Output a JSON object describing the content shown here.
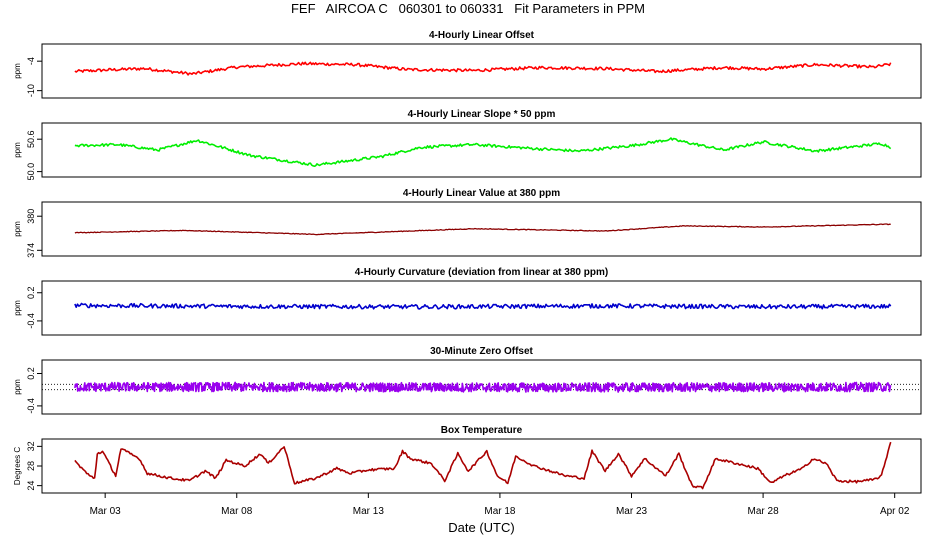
{
  "title": "FEF   AIRCOA C   060301 to 060331   Fit Parameters in PPM",
  "x_axis": {
    "label": "Date (UTC)",
    "ticks": [
      {
        "label": "Mar 03",
        "day": 3
      },
      {
        "label": "Mar 08",
        "day": 8
      },
      {
        "label": "Mar 13",
        "day": 13
      },
      {
        "label": "Mar 18",
        "day": 18
      },
      {
        "label": "Mar 23",
        "day": 23
      },
      {
        "label": "Mar 28",
        "day": 28
      },
      {
        "label": "Apr 02",
        "day": 33
      }
    ],
    "range_days": [
      0.6,
      34.0
    ]
  },
  "chart_data": [
    {
      "type": "line",
      "title": "4-Hourly Linear Offset",
      "ylabel": "ppm",
      "yticks": [
        "-4",
        "-10"
      ],
      "ytick_values": [
        -4,
        -10
      ],
      "ylim": [
        -11.5,
        -0.5
      ],
      "color": "#ff0000",
      "x_start": 1.85,
      "x_end": 32.85,
      "anchors": [
        {
          "x": 1.85,
          "y": -6.1
        },
        {
          "x": 3.0,
          "y": -5.8
        },
        {
          "x": 4.5,
          "y": -5.5
        },
        {
          "x": 6.3,
          "y": -6.6
        },
        {
          "x": 8.0,
          "y": -5.2
        },
        {
          "x": 10.5,
          "y": -4.5
        },
        {
          "x": 12.5,
          "y": -4.7
        },
        {
          "x": 14.5,
          "y": -5.7
        },
        {
          "x": 17.0,
          "y": -5.9
        },
        {
          "x": 19.5,
          "y": -5.3
        },
        {
          "x": 22.0,
          "y": -5.5
        },
        {
          "x": 24.0,
          "y": -6.1
        },
        {
          "x": 26.5,
          "y": -5.3
        },
        {
          "x": 28.0,
          "y": -5.6
        },
        {
          "x": 30.0,
          "y": -4.7
        },
        {
          "x": 32.2,
          "y": -5.2
        },
        {
          "x": 32.85,
          "y": -4.6
        }
      ],
      "noise": 0.3
    },
    {
      "type": "line",
      "title": "4-Hourly Linear Slope * 50 ppm",
      "ylabel": "ppm",
      "yticks": [
        "50.6",
        "50.0"
      ],
      "ytick_values": [
        50.6,
        50.0
      ],
      "ylim": [
        49.9,
        50.9
      ],
      "color": "#00ee00",
      "x_start": 1.85,
      "x_end": 32.85,
      "anchors": [
        {
          "x": 1.85,
          "y": 50.48
        },
        {
          "x": 3.5,
          "y": 50.5
        },
        {
          "x": 5.0,
          "y": 50.4
        },
        {
          "x": 6.5,
          "y": 50.58
        },
        {
          "x": 8.5,
          "y": 50.3
        },
        {
          "x": 11.0,
          "y": 50.12
        },
        {
          "x": 13.5,
          "y": 50.28
        },
        {
          "x": 15.0,
          "y": 50.45
        },
        {
          "x": 17.0,
          "y": 50.5
        },
        {
          "x": 19.5,
          "y": 50.42
        },
        {
          "x": 21.0,
          "y": 50.38
        },
        {
          "x": 23.0,
          "y": 50.48
        },
        {
          "x": 24.5,
          "y": 50.6
        },
        {
          "x": 26.5,
          "y": 50.4
        },
        {
          "x": 28.0,
          "y": 50.55
        },
        {
          "x": 30.0,
          "y": 50.38
        },
        {
          "x": 32.5,
          "y": 50.52
        },
        {
          "x": 32.85,
          "y": 50.45
        }
      ],
      "noise": 0.025
    },
    {
      "type": "line",
      "title": "4-Hourly Linear Value at 380 ppm",
      "ylabel": "ppm",
      "yticks": [
        "380",
        "374"
      ],
      "ytick_values": [
        380,
        374
      ],
      "ylim": [
        373.0,
        382.5
      ],
      "color": "#8b0000",
      "x_start": 1.85,
      "x_end": 32.85,
      "anchors": [
        {
          "x": 1.85,
          "y": 377.1
        },
        {
          "x": 6.0,
          "y": 377.5
        },
        {
          "x": 11.0,
          "y": 376.8
        },
        {
          "x": 17.0,
          "y": 377.8
        },
        {
          "x": 22.0,
          "y": 377.4
        },
        {
          "x": 25.0,
          "y": 378.3
        },
        {
          "x": 28.0,
          "y": 378.1
        },
        {
          "x": 32.85,
          "y": 378.6
        }
      ],
      "noise": 0.06
    },
    {
      "type": "line",
      "title": "4-Hourly Curvature (deviation from linear at 380 ppm)",
      "ylabel": "ppm",
      "yticks": [
        "0.2",
        "-0.4"
      ],
      "ytick_values": [
        0.2,
        -0.4
      ],
      "ylim": [
        -0.7,
        0.45
      ],
      "color": "#0000cc",
      "x_start": 1.85,
      "x_end": 32.85,
      "anchors": [
        {
          "x": 1.85,
          "y": -0.07
        },
        {
          "x": 8.0,
          "y": -0.09
        },
        {
          "x": 15.0,
          "y": -0.1
        },
        {
          "x": 22.0,
          "y": -0.08
        },
        {
          "x": 28.0,
          "y": -0.1
        },
        {
          "x": 32.85,
          "y": -0.09
        }
      ],
      "noise": 0.045
    },
    {
      "type": "line",
      "title": "30-Minute Zero Offset",
      "ylabel": "ppm",
      "yticks": [
        "0.2",
        "-0.4"
      ],
      "ytick_values": [
        0.2,
        -0.4
      ],
      "ylim": [
        -0.55,
        0.45
      ],
      "color": "#9900ee",
      "reference_lines": [
        0.0,
        -0.1
      ],
      "x_start": 1.85,
      "x_end": 32.85,
      "anchors": [
        {
          "x": 1.85,
          "y": -0.05
        },
        {
          "x": 10.0,
          "y": -0.05
        },
        {
          "x": 20.0,
          "y": -0.06
        },
        {
          "x": 32.85,
          "y": -0.05
        }
      ],
      "noise": 0.085
    },
    {
      "type": "line",
      "title": "Box Temperature",
      "ylabel": "Degrees C",
      "yticks": [
        "32",
        "28",
        "24"
      ],
      "ytick_values": [
        32,
        28,
        24
      ],
      "ylim": [
        22.5,
        33.5
      ],
      "color": "#aa0000",
      "x_start": 1.85,
      "x_end": 32.85,
      "anchors": [
        {
          "x": 1.85,
          "y": 29.0
        },
        {
          "x": 2.4,
          "y": 26.0
        },
        {
          "x": 2.6,
          "y": 25.5
        },
        {
          "x": 2.7,
          "y": 30.5
        },
        {
          "x": 2.9,
          "y": 31.0
        },
        {
          "x": 3.4,
          "y": 26.0
        },
        {
          "x": 3.6,
          "y": 31.5
        },
        {
          "x": 4.3,
          "y": 29.5
        },
        {
          "x": 4.6,
          "y": 26.5
        },
        {
          "x": 5.5,
          "y": 25.5
        },
        {
          "x": 6.2,
          "y": 25.0
        },
        {
          "x": 6.8,
          "y": 27.0
        },
        {
          "x": 7.2,
          "y": 25.5
        },
        {
          "x": 7.6,
          "y": 29.2
        },
        {
          "x": 8.3,
          "y": 28.0
        },
        {
          "x": 8.9,
          "y": 30.5
        },
        {
          "x": 9.2,
          "y": 28.5
        },
        {
          "x": 9.8,
          "y": 32.0
        },
        {
          "x": 10.2,
          "y": 24.5
        },
        {
          "x": 11.0,
          "y": 25.5
        },
        {
          "x": 11.8,
          "y": 27.5
        },
        {
          "x": 12.3,
          "y": 26.5
        },
        {
          "x": 13.0,
          "y": 27.2
        },
        {
          "x": 14.0,
          "y": 27.5
        },
        {
          "x": 14.3,
          "y": 31.0
        },
        {
          "x": 14.6,
          "y": 29.5
        },
        {
          "x": 15.4,
          "y": 28.5
        },
        {
          "x": 15.9,
          "y": 25.0
        },
        {
          "x": 16.4,
          "y": 30.5
        },
        {
          "x": 16.8,
          "y": 27.0
        },
        {
          "x": 17.5,
          "y": 31.0
        },
        {
          "x": 17.9,
          "y": 26.0
        },
        {
          "x": 18.3,
          "y": 24.5
        },
        {
          "x": 18.6,
          "y": 30.0
        },
        {
          "x": 19.3,
          "y": 28.0
        },
        {
          "x": 20.5,
          "y": 26.0
        },
        {
          "x": 21.2,
          "y": 25.5
        },
        {
          "x": 21.5,
          "y": 31.0
        },
        {
          "x": 22.0,
          "y": 27.0
        },
        {
          "x": 22.5,
          "y": 30.5
        },
        {
          "x": 23.0,
          "y": 26.0
        },
        {
          "x": 23.5,
          "y": 29.5
        },
        {
          "x": 24.3,
          "y": 26.0
        },
        {
          "x": 24.8,
          "y": 30.5
        },
        {
          "x": 25.3,
          "y": 24.0
        },
        {
          "x": 25.7,
          "y": 23.5
        },
        {
          "x": 26.2,
          "y": 29.5
        },
        {
          "x": 27.0,
          "y": 28.5
        },
        {
          "x": 27.8,
          "y": 27.5
        },
        {
          "x": 28.3,
          "y": 24.5
        },
        {
          "x": 28.8,
          "y": 26.0
        },
        {
          "x": 29.5,
          "y": 27.5
        },
        {
          "x": 29.9,
          "y": 29.5
        },
        {
          "x": 30.4,
          "y": 28.5
        },
        {
          "x": 30.8,
          "y": 25.0
        },
        {
          "x": 31.5,
          "y": 24.8
        },
        {
          "x": 32.2,
          "y": 25.2
        },
        {
          "x": 32.5,
          "y": 26.0
        },
        {
          "x": 32.85,
          "y": 33.0
        }
      ],
      "noise": 0.25
    }
  ]
}
